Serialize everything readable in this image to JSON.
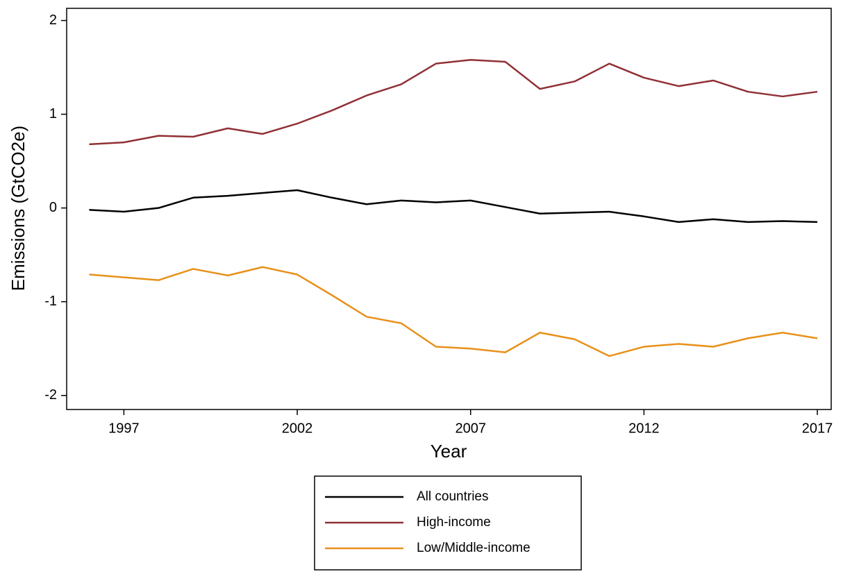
{
  "chart_data": {
    "type": "line",
    "x_label": "Year",
    "y_label": "Emissions (GtCO2e)",
    "x": [
      1996,
      1997,
      1998,
      1999,
      2000,
      2001,
      2002,
      2003,
      2004,
      2005,
      2006,
      2007,
      2008,
      2009,
      2010,
      2011,
      2012,
      2013,
      2014,
      2015,
      2016,
      2017
    ],
    "series": [
      {
        "name": "All countries",
        "color": "#000000",
        "values": [
          -0.02,
          -0.04,
          0.0,
          0.11,
          0.13,
          0.16,
          0.19,
          0.11,
          0.04,
          0.08,
          0.06,
          0.08,
          0.01,
          -0.06,
          -0.05,
          -0.04,
          -0.09,
          -0.15,
          -0.12,
          -0.15,
          -0.14,
          -0.15
        ]
      },
      {
        "name": "High-income",
        "color": "#903035",
        "values": [
          0.68,
          0.7,
          0.77,
          0.76,
          0.85,
          0.79,
          0.9,
          1.04,
          1.2,
          1.32,
          1.54,
          1.58,
          1.56,
          1.27,
          1.35,
          1.54,
          1.39,
          1.3,
          1.36,
          1.24,
          1.19,
          1.24
        ]
      },
      {
        "name": "Low/Middle-income",
        "color": "#e8901a",
        "values": [
          -0.71,
          -0.74,
          -0.77,
          -0.65,
          -0.72,
          -0.63,
          -0.71,
          -0.93,
          -1.16,
          -1.23,
          -1.48,
          -1.5,
          -1.54,
          -1.33,
          -1.4,
          -1.58,
          -1.48,
          -1.45,
          -1.48,
          -1.39,
          -1.33,
          -1.39
        ]
      }
    ],
    "xlim": [
      1995.35,
      2017.4
    ],
    "xticks": [
      1997,
      2002,
      2007,
      2012,
      2017
    ],
    "ylim": [
      -2.15,
      2.13
    ],
    "yticks": [
      -2,
      -1,
      0,
      1,
      2
    ],
    "grid": false,
    "legend": "bottom"
  }
}
